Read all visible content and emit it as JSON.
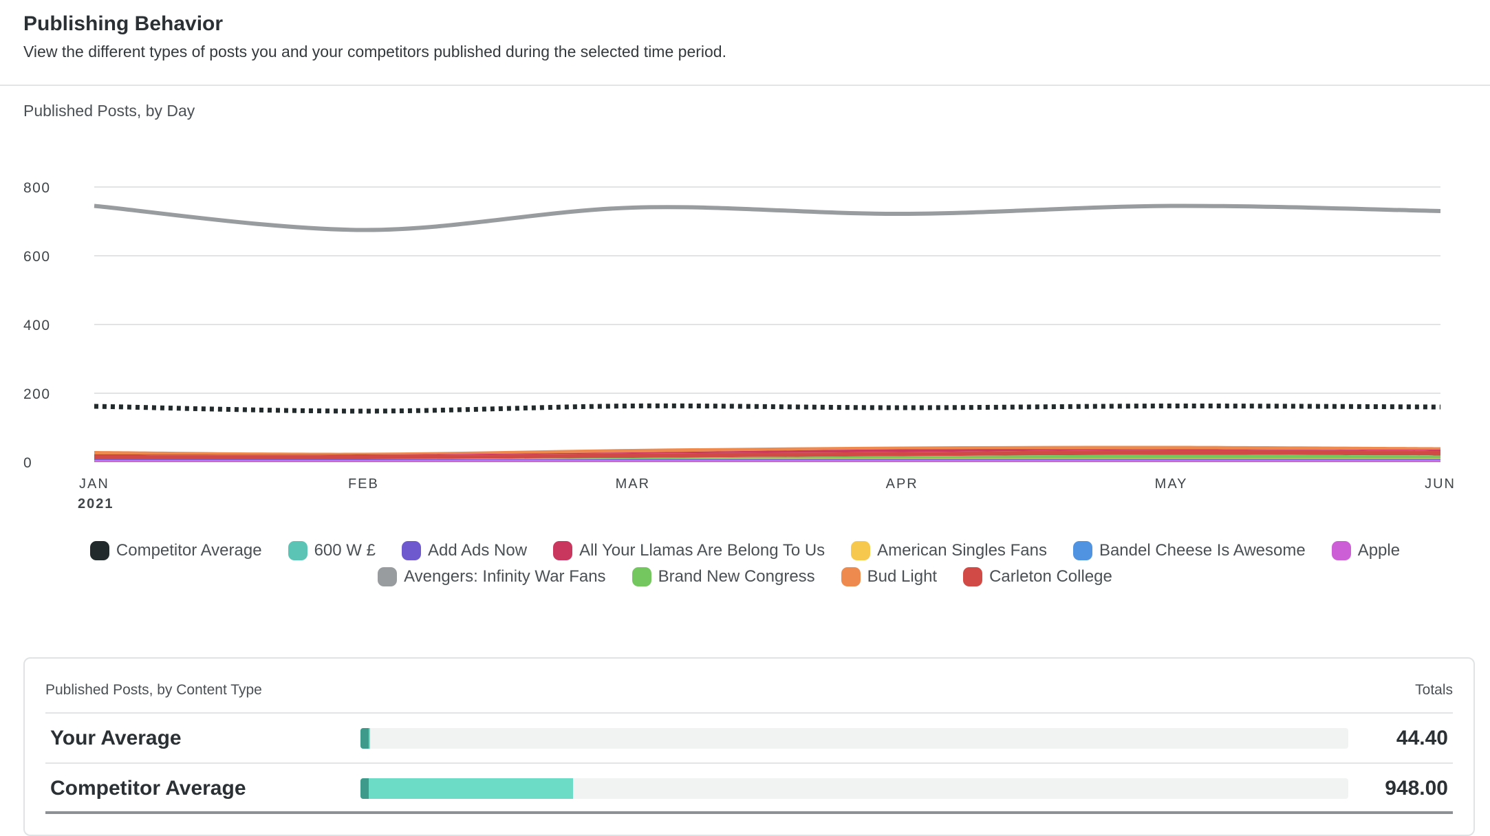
{
  "header": {
    "title": "Publishing Behavior",
    "subtitle": "View the different types of posts you and your competitors published during the selected time period."
  },
  "chart_data": {
    "type": "line",
    "title": "Published Posts, by Day",
    "xlabel": "",
    "ylabel": "",
    "x": [
      "JAN",
      "FEB",
      "MAR",
      "APR",
      "MAY",
      "JUN"
    ],
    "x_year_label": "2021",
    "ylim": [
      0,
      800
    ],
    "yticks": [
      "800",
      "600",
      "400",
      "200",
      "0"
    ],
    "grid": true,
    "legend_placement": "bottom",
    "series": [
      {
        "name": "Avengers: Infinity War Fans",
        "kind": "line",
        "color": "#999c9e",
        "values": [
          745,
          675,
          740,
          722,
          745,
          730
        ]
      },
      {
        "name": "Competitor Average",
        "kind": "dotted-line",
        "color": "#222a2b",
        "values": [
          162,
          148,
          163,
          158,
          163,
          160
        ]
      },
      {
        "name": "Bud Light",
        "kind": "area",
        "color": "#ef8a4e",
        "values": [
          10,
          5,
          10,
          8,
          10,
          7
        ]
      },
      {
        "name": "All Your Llamas Are Belong To Us",
        "kind": "area",
        "color": "#c9365e",
        "values": [
          2,
          2,
          3,
          8,
          2,
          3
        ]
      },
      {
        "name": "Carleton College",
        "kind": "area",
        "color": "#d24a45",
        "values": [
          12,
          12,
          13,
          12,
          14,
          14
        ]
      },
      {
        "name": "Brand New Congress",
        "kind": "area",
        "color": "#74c65f",
        "values": [
          0,
          0,
          2,
          6,
          10,
          8
        ]
      },
      {
        "name": "American Singles Fans",
        "kind": "area",
        "color": "#f6c94e",
        "values": [
          0,
          0,
          1,
          2,
          2,
          2
        ]
      },
      {
        "name": "Bandel Cheese Is Awesome",
        "kind": "area",
        "color": "#4f93e1",
        "values": [
          0,
          0,
          1,
          1,
          1,
          1
        ]
      },
      {
        "name": "Add Ads Now",
        "kind": "area",
        "color": "#6e5ace",
        "values": [
          2,
          2,
          2,
          2,
          2,
          2
        ]
      },
      {
        "name": "600 W  £",
        "kind": "area",
        "color": "#5bc4b4",
        "values": [
          2,
          2,
          2,
          2,
          2,
          2
        ]
      },
      {
        "name": "Apple",
        "kind": "area",
        "color": "#cc5fd6",
        "values": [
          4,
          4,
          4,
          4,
          4,
          4
        ]
      }
    ]
  },
  "legend": {
    "rows": [
      [
        {
          "label": "Competitor Average",
          "color": "#222a2b"
        },
        {
          "label": "600 W  £",
          "color": "#5bc4b4"
        },
        {
          "label": "Add Ads Now",
          "color": "#6e5ace"
        },
        {
          "label": "All Your Llamas Are Belong To Us",
          "color": "#c9365e"
        },
        {
          "label": "American Singles Fans",
          "color": "#f6c94e"
        },
        {
          "label": "Bandel Cheese Is Awesome",
          "color": "#4f93e1"
        },
        {
          "label": "Apple",
          "color": "#cc5fd6"
        }
      ],
      [
        {
          "label": "Avengers: Infinity War Fans",
          "color": "#999c9e"
        },
        {
          "label": "Brand New Congress",
          "color": "#74c65f"
        },
        {
          "label": "Bud Light",
          "color": "#ef8a4e"
        },
        {
          "label": "Carleton College",
          "color": "#d24a45"
        }
      ]
    ]
  },
  "content_type": {
    "title": "Published Posts, by Content Type",
    "totals_label": "Totals",
    "max_value": 4400,
    "rows": [
      {
        "label": "Your Average",
        "value": 44.4,
        "total": "44.40"
      },
      {
        "label": "Competitor Average",
        "value": 948,
        "total": "948.00"
      }
    ]
  }
}
